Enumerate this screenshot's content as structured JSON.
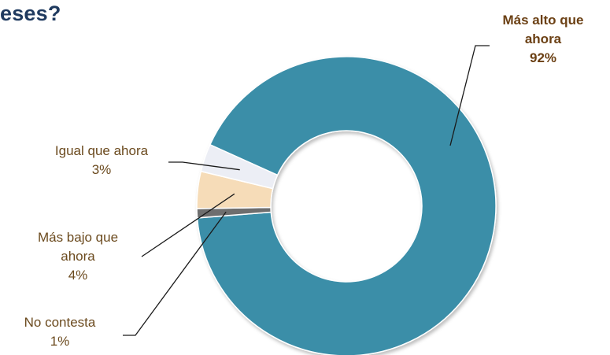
{
  "chart_data": {
    "type": "pie",
    "variant": "donut",
    "title": "eses?",
    "slices": [
      {
        "label_lines": [
          "Más alto que",
          "ahora"
        ],
        "value": 92,
        "value_label": "92%",
        "color": "#3a8ea8"
      },
      {
        "label_lines": [
          "No contesta"
        ],
        "value": 1,
        "value_label": "1%",
        "color": "#6e6e6e"
      },
      {
        "label_lines": [
          "Más bajo que",
          "ahora"
        ],
        "value": 4,
        "value_label": "4%",
        "color": "#f6dcb8"
      },
      {
        "label_lines": [
          "Igual que ahora"
        ],
        "value": 3,
        "value_label": "3%",
        "color": "#eceef5"
      }
    ],
    "legend": "none"
  }
}
